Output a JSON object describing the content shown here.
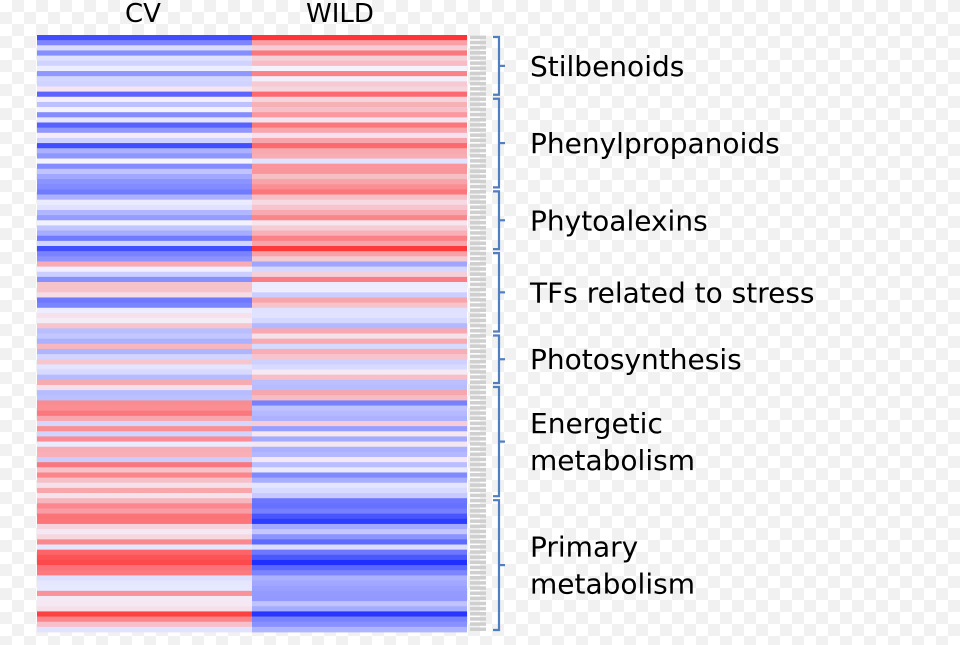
{
  "chart_data": {
    "type": "heatmap",
    "columns": [
      "CV",
      "WILD"
    ],
    "color_scale": {
      "low": "#1f2fff",
      "mid": "#f4f4ff",
      "high": "#ff1f1f"
    },
    "groups": [
      {
        "label_lines": [
          "Stilbenoids"
        ],
        "rows": 12,
        "cv": -0.35,
        "wild": 0.35
      },
      {
        "label_lines": [
          "Phenylpropanoids"
        ],
        "rows": 18,
        "cv": -0.4,
        "wild": 0.4
      },
      {
        "label_lines": [
          "Phytoalexins"
        ],
        "rows": 12,
        "cv": -0.45,
        "wild": 0.45
      },
      {
        "label_lines": [
          "TFs related to stress"
        ],
        "rows": 16,
        "cv": -0.15,
        "wild": 0.1
      },
      {
        "label_lines": [
          "Photosynthesis"
        ],
        "rows": 10,
        "cv": 0.15,
        "wild": -0.2
      },
      {
        "label_lines": [
          "Energetic",
          "metabolism"
        ],
        "rows": 22,
        "cv": 0.1,
        "wild": -0.1
      },
      {
        "label_lines": [
          "Primary",
          "metabolism"
        ],
        "rows": 26,
        "cv": 0.35,
        "wild": -0.55
      }
    ]
  }
}
